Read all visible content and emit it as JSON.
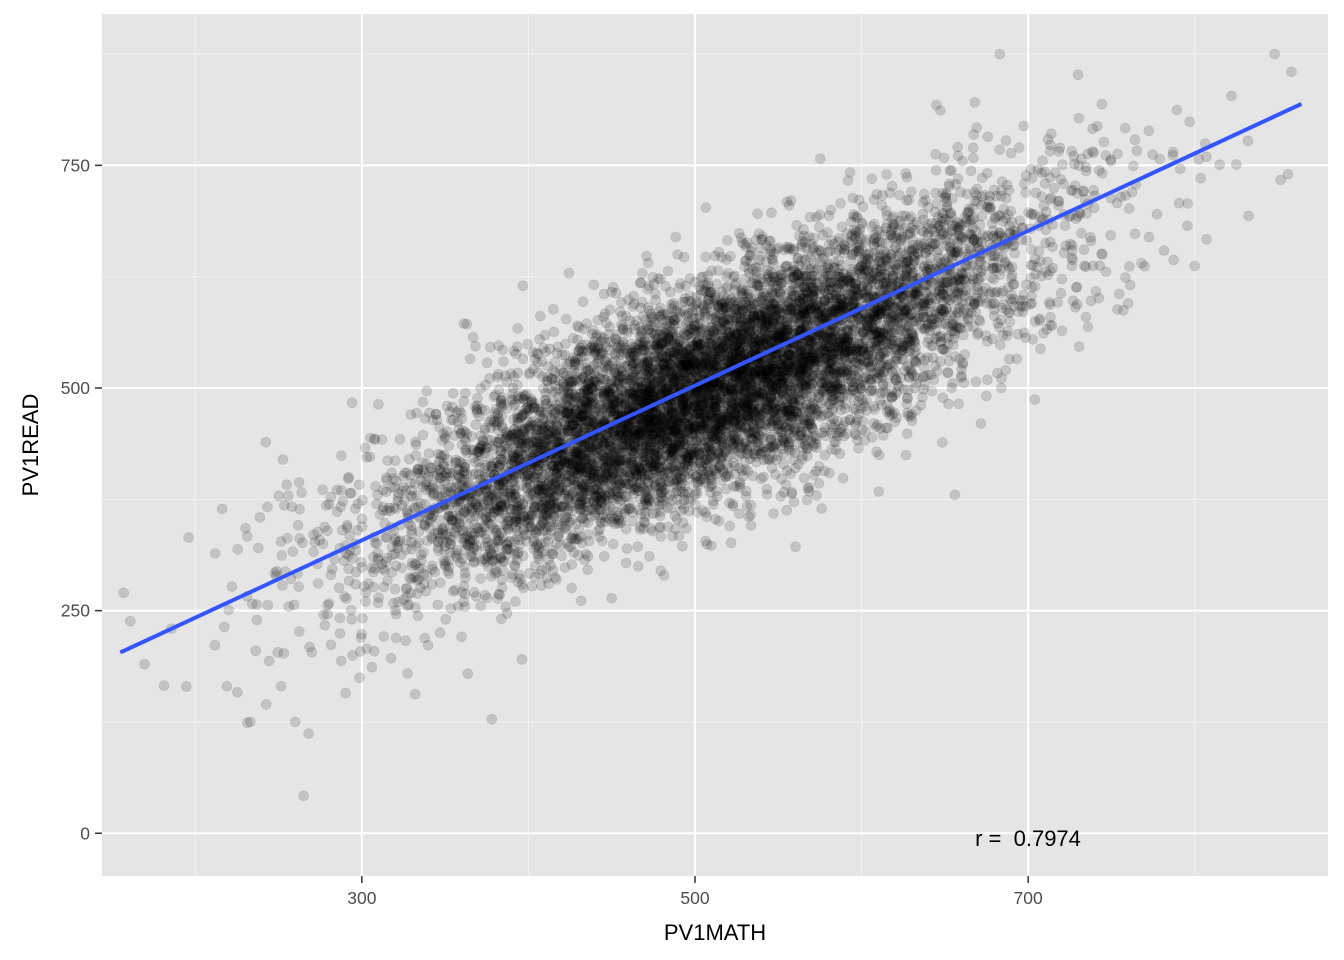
{
  "chart_data": {
    "type": "scatter",
    "xlabel": "PV1MATH",
    "ylabel": "PV1READ",
    "xlim": [
      144,
      880
    ],
    "ylim": [
      -48,
      920
    ],
    "x_ticks": [
      300,
      500,
      700
    ],
    "x_tick_labels": [
      "300",
      "500",
      "700"
    ],
    "y_ticks": [
      0,
      250,
      500,
      750
    ],
    "y_tick_labels": [
      "0",
      "250",
      "500",
      "750"
    ],
    "grid": true,
    "legend": "none",
    "annotation": "r =  0.7974",
    "correlation_r": 0.7974,
    "n_points": 9000,
    "point_color": "#000000",
    "point_alpha": 0.15,
    "mean_x": 510,
    "sd_x": 95,
    "mean_y": 500,
    "sd_y": 100,
    "fit_line": {
      "color": "#3355ff",
      "x": [
        155,
        864
      ],
      "y": [
        203,
        819
      ]
    },
    "outlier_points": [
      {
        "x": 157,
        "y": 270
      },
      {
        "x": 161,
        "y": 238
      },
      {
        "x": 196,
        "y": 332
      },
      {
        "x": 219,
        "y": 165
      },
      {
        "x": 265,
        "y": 42
      },
      {
        "x": 268,
        "y": 112
      },
      {
        "x": 656,
        "y": 380
      },
      {
        "x": 848,
        "y": 875
      },
      {
        "x": 858,
        "y": 855
      },
      {
        "x": 683,
        "y": 875
      },
      {
        "x": 822,
        "y": 828
      },
      {
        "x": 800,
        "y": 637
      },
      {
        "x": 704,
        "y": 487
      },
      {
        "x": 856,
        "y": 740
      },
      {
        "x": 332,
        "y": 156
      },
      {
        "x": 378,
        "y": 128
      },
      {
        "x": 260,
        "y": 125
      },
      {
        "x": 233,
        "y": 125
      },
      {
        "x": 825,
        "y": 751
      },
      {
        "x": 760,
        "y": 595
      }
    ]
  },
  "colors": {
    "panel_background": "#e5e5e5",
    "grid_major": "#ffffff",
    "grid_minor": "#f2f2f2",
    "fit_line": "#3355ff"
  }
}
